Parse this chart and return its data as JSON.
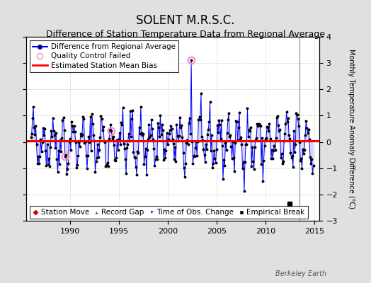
{
  "title": "SOLENT M.R.S.C.",
  "subtitle": "Difference of Station Temperature Data from Regional Average",
  "ylabel": "Monthly Temperature Anomaly Difference (°C)",
  "xlim": [
    1985.5,
    2015.5
  ],
  "ylim": [
    -3,
    4
  ],
  "yticks": [
    -3,
    -2,
    -1,
    0,
    1,
    2,
    3,
    4
  ],
  "xticks": [
    1990,
    1995,
    2000,
    2005,
    2010,
    2015
  ],
  "bias_value": 0.05,
  "bias_color": "#ff0000",
  "line_color": "#0000ff",
  "line_fill_color": "#8888ff",
  "dot_color": "#000000",
  "qc_fail_times": [
    2002.417,
    1989.5,
    1994.25
  ],
  "qc_fail_values": [
    3.1,
    -0.55,
    0.42
  ],
  "empirical_break_time": 2012.5,
  "empirical_break_value": -2.35,
  "vertical_line_x": 2013.5,
  "bg_color": "#e0e0e0",
  "plot_bg_color": "#ffffff",
  "grid_color": "#d0d0d0",
  "watermark": "Berkeley Earth",
  "title_fontsize": 12,
  "subtitle_fontsize": 9,
  "tick_labelsize": 8,
  "ylabel_fontsize": 7,
  "legend_fontsize": 7.5,
  "seed": 42,
  "start_year": 1986.0,
  "end_year": 2014.917,
  "seasonal_amp": 0.75,
  "noise_std": 0.38
}
